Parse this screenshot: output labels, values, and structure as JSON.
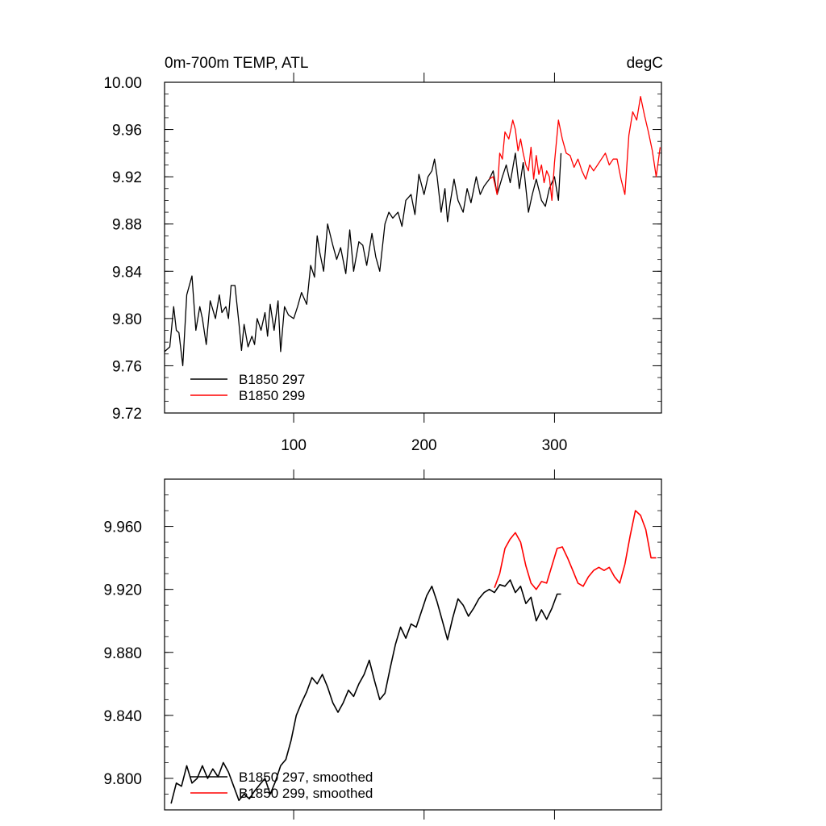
{
  "chart_data": [
    {
      "type": "line",
      "title": "0m-700m TEMP, ATL",
      "units": "degC",
      "xlabel": "",
      "ylabel": "",
      "xlim": [
        1,
        382
      ],
      "ylim": [
        9.72,
        10.0
      ],
      "xticks": [
        100,
        200,
        300
      ],
      "xtick_labels": [
        "100",
        "200",
        "300"
      ],
      "yticks": [
        9.72,
        9.76,
        9.8,
        9.84,
        9.88,
        9.92,
        9.96,
        10.0
      ],
      "ytick_labels": [
        "9.72",
        "9.76",
        "9.80",
        "9.84",
        "9.88",
        "9.92",
        "9.96",
        "10.00"
      ],
      "legend": {
        "placement": "bottom-left",
        "entries": [
          "B1850 297",
          "B1850 299"
        ]
      },
      "series": [
        {
          "name": "B1850 297",
          "color": "#000000",
          "x": [
            1,
            5,
            8,
            10,
            12,
            15,
            18,
            22,
            25,
            28,
            30,
            33,
            36,
            40,
            43,
            45,
            48,
            50,
            52,
            55,
            58,
            60,
            62,
            65,
            68,
            70,
            72,
            75,
            78,
            80,
            82,
            85,
            88,
            90,
            93,
            96,
            100,
            103,
            106,
            110,
            113,
            116,
            118,
            120,
            123,
            126,
            130,
            133,
            136,
            140,
            143,
            146,
            150,
            153,
            156,
            160,
            163,
            166,
            170,
            173,
            176,
            180,
            183,
            186,
            190,
            193,
            196,
            200,
            203,
            206,
            208,
            210,
            213,
            216,
            218,
            220,
            223,
            226,
            230,
            233,
            236,
            240,
            243,
            246,
            250,
            253,
            256,
            260,
            263,
            266,
            270,
            273,
            276,
            280,
            283,
            286,
            290,
            293,
            296,
            300,
            303,
            305
          ],
          "y": [
            9.772,
            9.776,
            9.81,
            9.79,
            9.788,
            9.76,
            9.82,
            9.836,
            9.79,
            9.81,
            9.8,
            9.778,
            9.815,
            9.8,
            9.82,
            9.805,
            9.81,
            9.8,
            9.828,
            9.828,
            9.796,
            9.773,
            9.795,
            9.776,
            9.785,
            9.778,
            9.8,
            9.79,
            9.805,
            9.785,
            9.812,
            9.79,
            9.815,
            9.772,
            9.81,
            9.803,
            9.8,
            9.81,
            9.822,
            9.812,
            9.845,
            9.835,
            9.87,
            9.856,
            9.84,
            9.88,
            9.862,
            9.85,
            9.86,
            9.838,
            9.875,
            9.84,
            9.865,
            9.862,
            9.845,
            9.872,
            9.852,
            9.84,
            9.88,
            9.89,
            9.885,
            9.89,
            9.878,
            9.9,
            9.905,
            9.888,
            9.922,
            9.905,
            9.92,
            9.925,
            9.935,
            9.92,
            9.89,
            9.91,
            9.882,
            9.898,
            9.918,
            9.9,
            9.89,
            9.91,
            9.898,
            9.92,
            9.905,
            9.912,
            9.918,
            9.925,
            9.905,
            9.92,
            9.93,
            9.915,
            9.94,
            9.91,
            9.932,
            9.89,
            9.905,
            9.918,
            9.9,
            9.895,
            9.91,
            9.92,
            9.9,
            9.94
          ]
        },
        {
          "name": "B1850 299",
          "color": "#ff0000",
          "x": [
            250,
            253,
            256,
            258,
            260,
            262,
            265,
            268,
            270,
            272,
            274,
            276,
            278,
            280,
            282,
            284,
            286,
            288,
            290,
            292,
            294,
            296,
            298,
            300,
            303,
            306,
            309,
            312,
            315,
            318,
            321,
            324,
            327,
            330,
            333,
            336,
            339,
            342,
            345,
            348,
            351,
            354,
            357,
            360,
            363,
            366,
            369,
            372,
            375,
            378,
            381
          ],
          "y": [
            9.918,
            9.92,
            9.905,
            9.94,
            9.935,
            9.958,
            9.952,
            9.968,
            9.96,
            9.942,
            9.952,
            9.94,
            9.93,
            9.925,
            9.945,
            9.918,
            9.938,
            9.922,
            9.93,
            9.915,
            9.925,
            9.92,
            9.9,
            9.932,
            9.968,
            9.952,
            9.94,
            9.938,
            9.928,
            9.935,
            9.925,
            9.918,
            9.93,
            9.925,
            9.93,
            9.935,
            9.94,
            9.93,
            9.935,
            9.935,
            9.918,
            9.905,
            9.955,
            9.975,
            9.968,
            9.988,
            9.972,
            9.958,
            9.942,
            9.92,
            9.945
          ]
        }
      ]
    },
    {
      "type": "line",
      "title": "",
      "xlabel": "",
      "ylabel": "",
      "xlim": [
        1,
        382
      ],
      "ylim": [
        9.78,
        9.99
      ],
      "xticks": [
        100,
        200,
        300
      ],
      "xtick_labels": [],
      "yticks": [
        9.8,
        9.84,
        9.88,
        9.92,
        9.96
      ],
      "ytick_labels": [
        "9.800",
        "9.840",
        "9.880",
        "9.920",
        "9.960"
      ],
      "legend": {
        "placement": "bottom-left",
        "entries": [
          "B1850 297, smoothed",
          "B1850 299, smoothed"
        ]
      },
      "series": [
        {
          "name": "B1850 297, smoothed",
          "color": "#000000",
          "x": [
            6,
            10,
            14,
            18,
            22,
            26,
            30,
            34,
            38,
            42,
            46,
            50,
            54,
            58,
            62,
            66,
            70,
            74,
            78,
            82,
            86,
            90,
            94,
            98,
            102,
            106,
            110,
            114,
            118,
            122,
            126,
            130,
            134,
            138,
            142,
            146,
            150,
            154,
            158,
            162,
            166,
            170,
            174,
            178,
            182,
            186,
            190,
            194,
            198,
            202,
            206,
            210,
            214,
            218,
            222,
            226,
            230,
            234,
            238,
            242,
            246,
            250,
            254,
            258,
            262,
            266,
            270,
            274,
            278,
            282,
            286,
            290,
            294,
            298,
            302,
            305
          ],
          "y": [
            9.784,
            9.797,
            9.795,
            9.808,
            9.797,
            9.8,
            9.808,
            9.8,
            9.806,
            9.801,
            9.81,
            9.804,
            9.795,
            9.786,
            9.79,
            9.787,
            9.792,
            9.796,
            9.8,
            9.79,
            9.798,
            9.808,
            9.812,
            9.824,
            9.84,
            9.848,
            9.855,
            9.864,
            9.86,
            9.866,
            9.858,
            9.848,
            9.842,
            9.848,
            9.856,
            9.852,
            9.86,
            9.866,
            9.875,
            9.862,
            9.85,
            9.854,
            9.87,
            9.885,
            9.896,
            9.889,
            9.898,
            9.896,
            9.906,
            9.916,
            9.922,
            9.912,
            9.9,
            9.888,
            9.902,
            9.914,
            9.91,
            9.903,
            9.908,
            9.914,
            9.918,
            9.92,
            9.918,
            9.923,
            9.922,
            9.926,
            9.918,
            9.922,
            9.911,
            9.915,
            9.9,
            9.907,
            9.901,
            9.908,
            9.917,
            9.917
          ]
        },
        {
          "name": "B1850 299, smoothed",
          "color": "#ff0000",
          "x": [
            254,
            258,
            262,
            266,
            270,
            274,
            278,
            282,
            286,
            290,
            294,
            298,
            302,
            306,
            310,
            314,
            318,
            322,
            326,
            330,
            334,
            338,
            342,
            346,
            350,
            354,
            358,
            362,
            366,
            370,
            374,
            378
          ],
          "y": [
            9.921,
            9.93,
            9.946,
            9.952,
            9.956,
            9.95,
            9.935,
            9.924,
            9.92,
            9.925,
            9.924,
            9.935,
            9.946,
            9.947,
            9.94,
            9.932,
            9.924,
            9.922,
            9.928,
            9.932,
            9.934,
            9.932,
            9.934,
            9.928,
            9.924,
            9.936,
            9.954,
            9.97,
            9.967,
            9.958,
            9.94,
            9.94
          ]
        }
      ]
    }
  ]
}
